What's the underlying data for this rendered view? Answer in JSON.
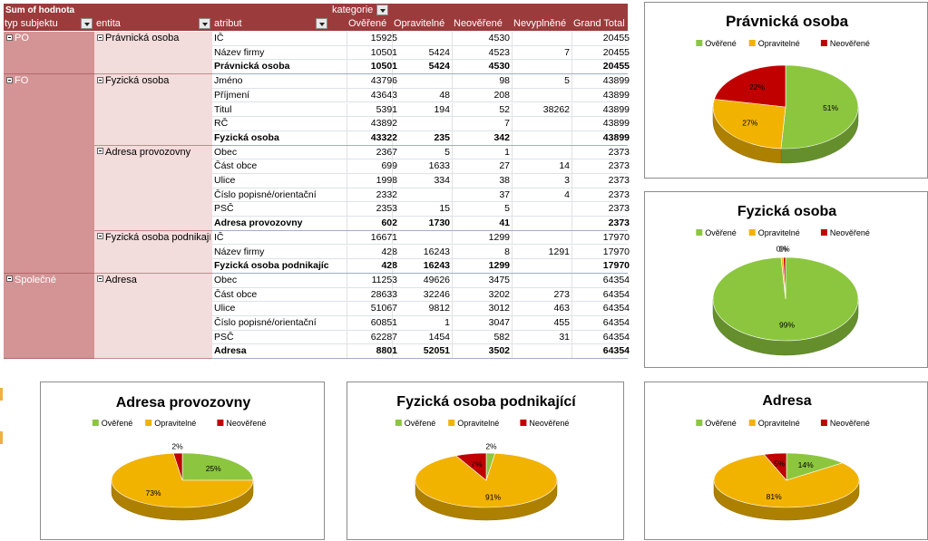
{
  "pivot": {
    "header_top": {
      "title": "Sum of hodnota",
      "kategorie": "kategorie"
    },
    "header_cols": {
      "typ": "typ subjektu",
      "entita": "entita",
      "atribut": "atribut"
    },
    "value_cols": [
      "Ověřené",
      "Opravitelné",
      "Neověřené",
      "Nevyplněné",
      "Grand Total"
    ],
    "groups": [
      {
        "label": "PO",
        "entities": [
          {
            "label": "Právnická osoba",
            "rows": [
              {
                "attr": "IČ",
                "v": [
                  "15925",
                  "",
                  "4530",
                  "",
                  "20455"
                ]
              },
              {
                "attr": "Název firmy",
                "v": [
                  "10501",
                  "5424",
                  "4523",
                  "7",
                  "20455"
                ]
              },
              {
                "attr": "Právnická osoba",
                "v": [
                  "10501",
                  "5424",
                  "4530",
                  "",
                  "20455"
                ],
                "total": true
              }
            ]
          }
        ]
      },
      {
        "label": "FO",
        "entities": [
          {
            "label": "Fyzická osoba",
            "rows": [
              {
                "attr": "Jméno",
                "v": [
                  "43796",
                  "",
                  "98",
                  "5",
                  "43899"
                ]
              },
              {
                "attr": "Příjmení",
                "v": [
                  "43643",
                  "48",
                  "208",
                  "",
                  "43899"
                ]
              },
              {
                "attr": "Titul",
                "v": [
                  "5391",
                  "194",
                  "52",
                  "38262",
                  "43899"
                ]
              },
              {
                "attr": "RČ",
                "v": [
                  "43892",
                  "",
                  "7",
                  "",
                  "43899"
                ]
              },
              {
                "attr": "Fyzická osoba",
                "v": [
                  "43322",
                  "235",
                  "342",
                  "",
                  "43899"
                ],
                "total": true
              }
            ]
          },
          {
            "label": "Adresa provozovny",
            "rows": [
              {
                "attr": "Obec",
                "v": [
                  "2367",
                  "5",
                  "1",
                  "",
                  "2373"
                ]
              },
              {
                "attr": "Část obce",
                "v": [
                  "699",
                  "1633",
                  "27",
                  "14",
                  "2373"
                ]
              },
              {
                "attr": "Ulice",
                "v": [
                  "1998",
                  "334",
                  "38",
                  "3",
                  "2373"
                ]
              },
              {
                "attr": "Číslo popisné/orientační",
                "v": [
                  "2332",
                  "",
                  "37",
                  "4",
                  "2373"
                ]
              },
              {
                "attr": "PSČ",
                "v": [
                  "2353",
                  "15",
                  "5",
                  "",
                  "2373"
                ]
              },
              {
                "attr": "Adresa provozovny",
                "v": [
                  "602",
                  "1730",
                  "41",
                  "",
                  "2373"
                ],
                "total": true
              }
            ]
          },
          {
            "label": "Fyzická osoba podnikající",
            "rows": [
              {
                "attr": "IČ",
                "v": [
                  "16671",
                  "",
                  "1299",
                  "",
                  "17970"
                ]
              },
              {
                "attr": "Název firmy",
                "v": [
                  "428",
                  "16243",
                  "8",
                  "1291",
                  "17970"
                ]
              },
              {
                "attr": "Fyzická osoba podnikající",
                "v": [
                  "428",
                  "16243",
                  "1299",
                  "",
                  "17970"
                ],
                "total": true
              }
            ]
          }
        ]
      },
      {
        "label": "Společné",
        "entities": [
          {
            "label": "Adresa",
            "rows": [
              {
                "attr": "Obec",
                "v": [
                  "11253",
                  "49626",
                  "3475",
                  "",
                  "64354"
                ]
              },
              {
                "attr": "Část obce",
                "v": [
                  "28633",
                  "32246",
                  "3202",
                  "273",
                  "64354"
                ]
              },
              {
                "attr": "Ulice",
                "v": [
                  "51067",
                  "9812",
                  "3012",
                  "463",
                  "64354"
                ]
              },
              {
                "attr": "Číslo popisné/orientační",
                "v": [
                  "60851",
                  "1",
                  "3047",
                  "455",
                  "64354"
                ]
              },
              {
                "attr": "PSČ",
                "v": [
                  "62287",
                  "1454",
                  "582",
                  "31",
                  "64354"
                ]
              },
              {
                "attr": "Adresa",
                "v": [
                  "8801",
                  "52051",
                  "3502",
                  "",
                  "64354"
                ],
                "total": true
              }
            ]
          }
        ]
      }
    ]
  },
  "colors": {
    "overene": "#8cc63f",
    "opravitelne": "#f2b200",
    "neoverene": "#c00000",
    "header_bg": "#9c3b3c"
  },
  "chart_data": [
    {
      "type": "pie",
      "title": "Právnická osoba",
      "categories": [
        "Ověřené",
        "Opravitelné",
        "Neověřené"
      ],
      "values": [
        51,
        27,
        22
      ],
      "labels": [
        "51%",
        "27%",
        "22%"
      ],
      "legend": "top"
    },
    {
      "type": "pie",
      "title": "Fyzická osoba",
      "categories": [
        "Ověřené",
        "Opravitelné",
        "Neověřené"
      ],
      "values": [
        99,
        0.5,
        0.5
      ],
      "labels": [
        "99%",
        "0%",
        "1%"
      ],
      "legend": "top"
    },
    {
      "type": "pie",
      "title": "Adresa provozovny",
      "categories": [
        "Ověřené",
        "Opravitelné",
        "Neověřené"
      ],
      "values": [
        25,
        73,
        2
      ],
      "labels": [
        "25%",
        "73%",
        "2%"
      ],
      "legend": "top"
    },
    {
      "type": "pie",
      "title": "Fyzická osoba podnikající",
      "categories": [
        "Ověřené",
        "Opravitelné",
        "Neověřené"
      ],
      "values": [
        2,
        91,
        7
      ],
      "labels": [
        "2%",
        "91%",
        "7%"
      ],
      "legend": "top"
    },
    {
      "type": "pie",
      "title": "Adresa",
      "categories": [
        "Ověřené",
        "Opravitelné",
        "Neověřené"
      ],
      "values": [
        14,
        81,
        5
      ],
      "labels": [
        "14%",
        "81%",
        "5%"
      ],
      "legend": "top"
    }
  ]
}
